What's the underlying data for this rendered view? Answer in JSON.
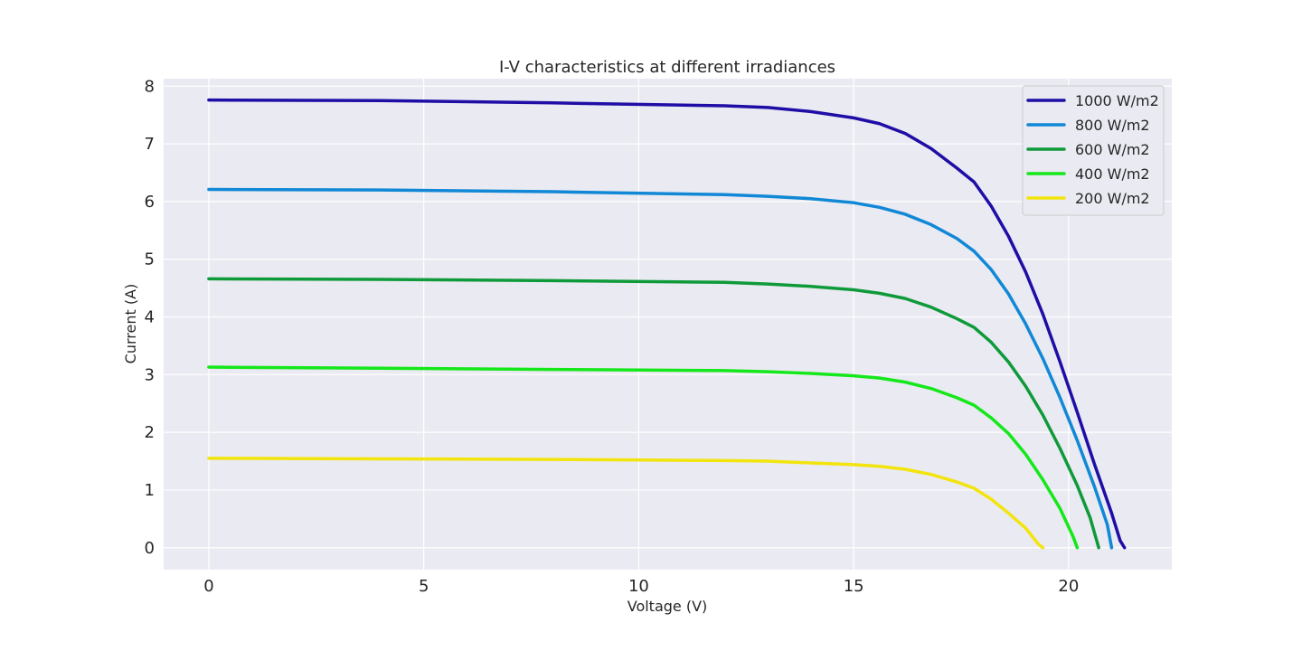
{
  "chart_data": {
    "type": "line",
    "title": "I-V characteristics at different irradiances",
    "xlabel": "Voltage (V)",
    "ylabel": "Current (A)",
    "xlim": [
      -1.05,
      22.4
    ],
    "ylim": [
      -0.38,
      8.13
    ],
    "xticks": [
      0,
      5,
      10,
      15,
      20
    ],
    "yticks": [
      0,
      1,
      2,
      3,
      4,
      5,
      6,
      7,
      8
    ],
    "grid": true,
    "background": "#eaeaf2",
    "legend_position": "top-right",
    "series": [
      {
        "name": "1000 W/m2",
        "color": "#1f0ea6",
        "points": [
          [
            0,
            7.76
          ],
          [
            4,
            7.75
          ],
          [
            8,
            7.71
          ],
          [
            12,
            7.66
          ],
          [
            13,
            7.63
          ],
          [
            14,
            7.56
          ],
          [
            15,
            7.45
          ],
          [
            15.6,
            7.35
          ],
          [
            16.2,
            7.18
          ],
          [
            16.8,
            6.92
          ],
          [
            17.4,
            6.58
          ],
          [
            17.8,
            6.34
          ],
          [
            18.2,
            5.92
          ],
          [
            18.6,
            5.4
          ],
          [
            19.0,
            4.78
          ],
          [
            19.4,
            4.05
          ],
          [
            19.8,
            3.22
          ],
          [
            20.2,
            2.35
          ],
          [
            20.6,
            1.45
          ],
          [
            21.0,
            0.6
          ],
          [
            21.2,
            0.12
          ],
          [
            21.3,
            0.0
          ]
        ]
      },
      {
        "name": "800 W/m2",
        "color": "#1188d6",
        "points": [
          [
            0,
            6.21
          ],
          [
            4,
            6.2
          ],
          [
            8,
            6.17
          ],
          [
            12,
            6.12
          ],
          [
            13,
            6.09
          ],
          [
            14,
            6.05
          ],
          [
            15,
            5.98
          ],
          [
            15.6,
            5.9
          ],
          [
            16.2,
            5.78
          ],
          [
            16.8,
            5.6
          ],
          [
            17.4,
            5.36
          ],
          [
            17.8,
            5.14
          ],
          [
            18.2,
            4.82
          ],
          [
            18.6,
            4.4
          ],
          [
            19.0,
            3.88
          ],
          [
            19.4,
            3.28
          ],
          [
            19.8,
            2.6
          ],
          [
            20.2,
            1.86
          ],
          [
            20.6,
            1.06
          ],
          [
            20.9,
            0.4
          ],
          [
            21.0,
            0.0
          ]
        ]
      },
      {
        "name": "600 W/m2",
        "color": "#0f9a3a",
        "points": [
          [
            0,
            4.66
          ],
          [
            4,
            4.65
          ],
          [
            8,
            4.63
          ],
          [
            12,
            4.6
          ],
          [
            13,
            4.57
          ],
          [
            14,
            4.53
          ],
          [
            15,
            4.47
          ],
          [
            15.6,
            4.41
          ],
          [
            16.2,
            4.32
          ],
          [
            16.8,
            4.17
          ],
          [
            17.4,
            3.97
          ],
          [
            17.8,
            3.82
          ],
          [
            18.2,
            3.56
          ],
          [
            18.6,
            3.22
          ],
          [
            19.0,
            2.8
          ],
          [
            19.4,
            2.3
          ],
          [
            19.8,
            1.72
          ],
          [
            20.2,
            1.08
          ],
          [
            20.5,
            0.52
          ],
          [
            20.7,
            0.0
          ]
        ]
      },
      {
        "name": "400 W/m2",
        "color": "#15e81a",
        "points": [
          [
            0,
            3.13
          ],
          [
            4,
            3.11
          ],
          [
            8,
            3.09
          ],
          [
            12,
            3.07
          ],
          [
            13,
            3.05
          ],
          [
            14,
            3.02
          ],
          [
            15,
            2.98
          ],
          [
            15.6,
            2.94
          ],
          [
            16.2,
            2.87
          ],
          [
            16.8,
            2.76
          ],
          [
            17.4,
            2.6
          ],
          [
            17.8,
            2.47
          ],
          [
            18.2,
            2.25
          ],
          [
            18.6,
            1.98
          ],
          [
            19.0,
            1.62
          ],
          [
            19.4,
            1.18
          ],
          [
            19.8,
            0.68
          ],
          [
            20.1,
            0.2
          ],
          [
            20.2,
            0.0
          ]
        ]
      },
      {
        "name": "200 W/m2",
        "color": "#f2e40c",
        "points": [
          [
            0,
            1.55
          ],
          [
            4,
            1.54
          ],
          [
            8,
            1.53
          ],
          [
            12,
            1.51
          ],
          [
            13,
            1.5
          ],
          [
            14,
            1.47
          ],
          [
            15,
            1.44
          ],
          [
            15.6,
            1.41
          ],
          [
            16.2,
            1.36
          ],
          [
            16.8,
            1.27
          ],
          [
            17.4,
            1.14
          ],
          [
            17.8,
            1.03
          ],
          [
            18.2,
            0.84
          ],
          [
            18.6,
            0.6
          ],
          [
            19.0,
            0.34
          ],
          [
            19.3,
            0.06
          ],
          [
            19.4,
            0.0
          ]
        ]
      }
    ]
  }
}
